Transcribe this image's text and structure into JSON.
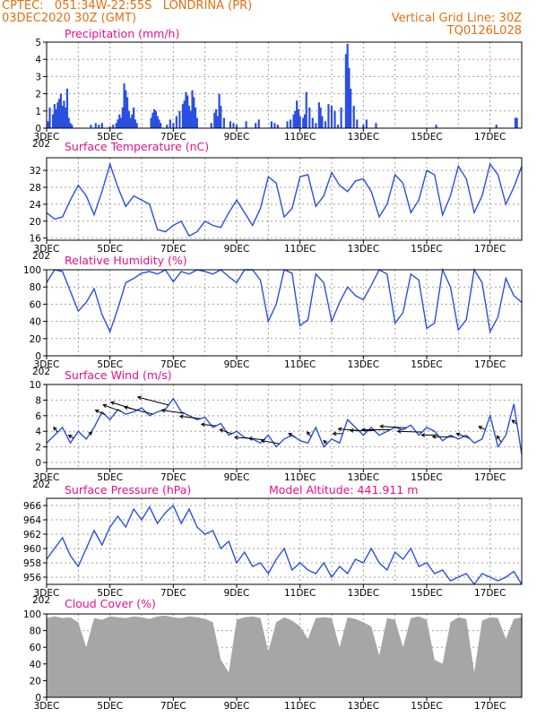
{
  "header": {
    "line1": "CPTEC:   051:34W-22:55S   LONDRINA (PR)",
    "line2": "03DEC2020 30Z (GMT)",
    "grid_note": "Vertical Grid Line: 30Z",
    "code": "TQ0126L028"
  },
  "colors": {
    "header_text": "#e07010",
    "panel_title": "#e8108a",
    "series": "#2b4fe0",
    "cloud": "#a6a6a6",
    "grid": "#a0a0a0",
    "wind_arrow": "#000000"
  },
  "x_axis": {
    "range_days": [
      3.0,
      18.0
    ],
    "tick_labels": [
      "3DEC",
      "5DEC",
      "7DEC",
      "9DEC",
      "11DEC",
      "13DEC",
      "15DEC",
      "17DEC"
    ],
    "tick_days": [
      3,
      5,
      7,
      9,
      11,
      13,
      15,
      17
    ],
    "grid_days": [
      4,
      5,
      6,
      7,
      8,
      9,
      10,
      11,
      12,
      13,
      14,
      15,
      16,
      17
    ],
    "stub_label": "202"
  },
  "chart_data": [
    {
      "type": "bar",
      "title": "Precipitation (mm/h)",
      "ylim": [
        0,
        5
      ],
      "yticks": [
        "0",
        "1",
        "2",
        "3",
        "4",
        "5"
      ],
      "x_day": [
        3.05,
        3.1,
        3.2,
        3.25,
        3.3,
        3.35,
        3.4,
        3.45,
        3.5,
        3.55,
        3.6,
        3.65,
        3.7,
        3.75,
        3.8,
        4.4,
        4.55,
        4.65,
        4.75,
        5.0,
        5.1,
        5.2,
        5.25,
        5.3,
        5.35,
        5.4,
        5.45,
        5.5,
        5.55,
        5.6,
        5.65,
        5.7,
        5.75,
        5.8,
        5.85,
        6.3,
        6.35,
        6.4,
        6.45,
        6.5,
        6.55,
        6.6,
        6.8,
        6.9,
        7.0,
        7.1,
        7.2,
        7.3,
        7.35,
        7.4,
        7.45,
        7.5,
        7.55,
        7.6,
        7.65,
        7.7,
        7.75,
        8.2,
        8.3,
        8.35,
        8.4,
        8.45,
        8.5,
        8.6,
        8.8,
        8.9,
        9.0,
        9.3,
        9.6,
        9.7,
        10.1,
        10.2,
        10.3,
        10.6,
        10.7,
        10.8,
        10.85,
        10.9,
        10.95,
        11.0,
        11.1,
        11.15,
        11.2,
        11.3,
        11.4,
        11.5,
        11.6,
        11.65,
        11.7,
        11.8,
        11.9,
        12.0,
        12.1,
        12.2,
        12.3,
        12.45,
        12.5,
        12.55,
        12.6,
        12.7,
        12.8,
        13.0,
        13.1,
        13.4,
        15.3,
        17.2,
        17.8,
        17.85
      ],
      "values": [
        0.4,
        1.2,
        0.8,
        1.4,
        1.1,
        1.5,
        1.7,
        2.0,
        1.3,
        1.6,
        1.2,
        2.3,
        0.6,
        0.3,
        0.2,
        0.2,
        0.3,
        0.2,
        0.3,
        0.1,
        0.2,
        0.3,
        0.5,
        0.8,
        0.6,
        1.2,
        2.6,
        2.2,
        1.8,
        1.0,
        0.6,
        0.8,
        1.2,
        0.5,
        0.3,
        0.6,
        0.9,
        1.1,
        1.0,
        0.7,
        0.5,
        0.3,
        0.2,
        0.5,
        0.3,
        0.7,
        1.0,
        1.4,
        1.6,
        2.1,
        1.9,
        1.3,
        1.0,
        2.2,
        1.8,
        1.2,
        0.6,
        0.3,
        0.9,
        1.1,
        0.7,
        2.0,
        1.3,
        0.6,
        0.4,
        0.3,
        0.2,
        0.4,
        0.3,
        0.5,
        0.4,
        0.3,
        0.2,
        0.4,
        0.5,
        0.8,
        1.0,
        1.6,
        1.1,
        0.7,
        0.6,
        0.8,
        2.1,
        1.2,
        0.6,
        0.3,
        1.5,
        1.2,
        0.7,
        0.4,
        1.4,
        1.3,
        1.0,
        0.2,
        1.2,
        4.3,
        4.9,
        3.5,
        2.3,
        1.3,
        0.5,
        0.2,
        0.5,
        0.3,
        0.2,
        0.2,
        0.6,
        0.6
      ]
    },
    {
      "type": "line",
      "title": "Surface Temperature (nC)",
      "ylim": [
        15.5,
        35
      ],
      "yticks": [
        "16",
        "20",
        "24",
        "28",
        "32"
      ],
      "ytick_values": [
        16,
        20,
        24,
        28,
        32
      ],
      "x_day": [
        3.0,
        3.25,
        3.5,
        3.75,
        4.0,
        4.25,
        4.5,
        4.75,
        5.0,
        5.25,
        5.5,
        5.75,
        6.0,
        6.25,
        6.5,
        6.75,
        7.0,
        7.25,
        7.5,
        7.75,
        8.0,
        8.25,
        8.5,
        8.75,
        9.0,
        9.25,
        9.5,
        9.75,
        10.0,
        10.25,
        10.5,
        10.75,
        11.0,
        11.25,
        11.5,
        11.75,
        12.0,
        12.25,
        12.5,
        12.75,
        13.0,
        13.25,
        13.5,
        13.75,
        14.0,
        14.25,
        14.5,
        14.75,
        15.0,
        15.25,
        15.5,
        15.75,
        16.0,
        16.25,
        16.5,
        16.75,
        17.0,
        17.25,
        17.5,
        17.75,
        18.0
      ],
      "values": [
        22,
        20.5,
        21,
        25,
        28.5,
        26,
        21.5,
        27,
        33.5,
        28,
        23.5,
        26,
        25,
        24,
        18,
        17.5,
        19,
        20,
        16.5,
        17.5,
        20,
        19,
        18.5,
        22,
        25,
        22,
        19,
        23,
        30.5,
        29,
        21,
        23,
        30.5,
        31,
        23.5,
        26,
        31.5,
        28.5,
        27,
        29.5,
        30,
        27,
        21,
        24,
        31,
        29,
        22,
        25,
        32,
        31,
        21.5,
        26,
        33,
        30,
        22,
        26,
        33.5,
        31,
        24,
        28,
        33
      ]
    },
    {
      "type": "line",
      "title": "Relative Humidity (%)",
      "ylim": [
        0,
        100
      ],
      "yticks": [
        "0",
        "20",
        "40",
        "60",
        "80",
        "100"
      ],
      "ytick_values": [
        0,
        20,
        40,
        60,
        80,
        100
      ],
      "x_day": [
        3.0,
        3.25,
        3.5,
        3.75,
        4.0,
        4.25,
        4.5,
        4.75,
        5.0,
        5.25,
        5.5,
        5.75,
        6.0,
        6.25,
        6.5,
        6.75,
        7.0,
        7.25,
        7.5,
        7.75,
        8.0,
        8.25,
        8.5,
        8.75,
        9.0,
        9.25,
        9.5,
        9.75,
        10.0,
        10.25,
        10.5,
        10.75,
        11.0,
        11.25,
        11.5,
        11.75,
        12.0,
        12.25,
        12.5,
        12.75,
        13.0,
        13.25,
        13.5,
        13.75,
        14.0,
        14.25,
        14.5,
        14.75,
        15.0,
        15.25,
        15.5,
        15.75,
        16.0,
        16.25,
        16.5,
        16.75,
        17.0,
        17.25,
        17.5,
        17.75,
        18.0
      ],
      "values": [
        85,
        100,
        98,
        75,
        52,
        62,
        78,
        48,
        28,
        55,
        85,
        90,
        96,
        98,
        95,
        100,
        86,
        98,
        95,
        100,
        98,
        95,
        100,
        92,
        85,
        100,
        100,
        88,
        40,
        60,
        100,
        96,
        35,
        42,
        95,
        85,
        40,
        62,
        80,
        70,
        65,
        82,
        100,
        95,
        38,
        50,
        95,
        88,
        32,
        38,
        100,
        80,
        30,
        42,
        100,
        85,
        28,
        45,
        90,
        70,
        62
      ]
    },
    {
      "type": "line",
      "title": "Surface Wind (m/s)",
      "ylim": [
        -0.8,
        10
      ],
      "yticks": [
        "0",
        "2",
        "4",
        "6",
        "8",
        "10"
      ],
      "ytick_values": [
        0,
        2,
        4,
        6,
        8,
        10
      ],
      "x_day": [
        3.0,
        3.25,
        3.5,
        3.75,
        4.0,
        4.25,
        4.5,
        4.75,
        5.0,
        5.25,
        5.5,
        5.75,
        6.0,
        6.25,
        6.5,
        6.75,
        7.0,
        7.25,
        7.5,
        7.75,
        8.0,
        8.25,
        8.5,
        8.75,
        9.0,
        9.25,
        9.5,
        9.75,
        10.0,
        10.25,
        10.5,
        10.75,
        11.0,
        11.25,
        11.5,
        11.75,
        12.0,
        12.25,
        12.5,
        12.75,
        13.0,
        13.25,
        13.5,
        13.75,
        14.0,
        14.25,
        14.5,
        14.75,
        15.0,
        15.25,
        15.5,
        15.75,
        16.0,
        16.25,
        16.5,
        16.75,
        17.0,
        17.25,
        17.5,
        17.75,
        18.0
      ],
      "values": [
        2.5,
        3.5,
        4.5,
        2.5,
        4.0,
        3.0,
        4.5,
        6.5,
        5.5,
        6.8,
        6.2,
        6.5,
        7.0,
        6.0,
        6.5,
        6.8,
        8.2,
        6.5,
        6.0,
        5.5,
        5.8,
        4.5,
        5.0,
        3.5,
        4.0,
        3.2,
        3.0,
        2.5,
        3.5,
        2.0,
        3.0,
        3.5,
        2.8,
        2.5,
        4.5,
        2.0,
        3.0,
        2.5,
        5.5,
        4.5,
        3.5,
        4.5,
        3.5,
        4.0,
        4.5,
        4.2,
        4.8,
        3.5,
        4.5,
        4.0,
        2.8,
        3.5,
        3.0,
        3.5,
        2.5,
        3.0,
        6.0,
        2.0,
        3.5,
        7.5,
        1.0
      ]
    },
    {
      "type": "line",
      "title": "Surface Pressure (hPa)",
      "annotation": "Model Altitude: 441.911  m",
      "ylim": [
        955,
        967
      ],
      "yticks": [
        "956",
        "958",
        "960",
        "962",
        "964",
        "966"
      ],
      "ytick_values": [
        956,
        958,
        960,
        962,
        964,
        966
      ],
      "x_day": [
        3.0,
        3.25,
        3.5,
        3.75,
        4.0,
        4.25,
        4.5,
        4.75,
        5.0,
        5.25,
        5.5,
        5.75,
        6.0,
        6.25,
        6.5,
        6.75,
        7.0,
        7.25,
        7.5,
        7.75,
        8.0,
        8.25,
        8.5,
        8.75,
        9.0,
        9.25,
        9.5,
        9.75,
        10.0,
        10.25,
        10.5,
        10.75,
        11.0,
        11.25,
        11.5,
        11.75,
        12.0,
        12.25,
        12.5,
        12.75,
        13.0,
        13.25,
        13.5,
        13.75,
        14.0,
        14.25,
        14.5,
        14.75,
        15.0,
        15.25,
        15.5,
        15.75,
        16.0,
        16.25,
        16.5,
        16.75,
        17.0,
        17.25,
        17.5,
        17.75,
        18.0
      ],
      "values": [
        958.5,
        960,
        961.5,
        959,
        957.5,
        960,
        962.5,
        960.5,
        963,
        964.5,
        963,
        965.5,
        964,
        965.8,
        963.5,
        965,
        966,
        963.5,
        965.5,
        963,
        962,
        962.5,
        960,
        961,
        958,
        959.5,
        957.5,
        958,
        956.5,
        958.5,
        960,
        957,
        958,
        957,
        956.5,
        958,
        956,
        957.5,
        956.5,
        958.5,
        958,
        960,
        958,
        957,
        959.5,
        958.5,
        960,
        957.5,
        958,
        956.5,
        957,
        955.5,
        956,
        956.5,
        955,
        956.5,
        956,
        955.5,
        956,
        956.8,
        955
      ]
    },
    {
      "type": "area",
      "title": "Cloud Cover (%)",
      "ylim": [
        0,
        100
      ],
      "yticks": [
        "0",
        "20",
        "40",
        "60",
        "80",
        "100"
      ],
      "ytick_values": [
        0,
        20,
        40,
        60,
        80,
        100
      ],
      "x_day": [
        3.0,
        3.25,
        3.5,
        3.75,
        4.0,
        4.25,
        4.5,
        4.75,
        5.0,
        5.25,
        5.5,
        5.75,
        6.0,
        6.25,
        6.5,
        6.75,
        7.0,
        7.25,
        7.5,
        7.75,
        8.0,
        8.25,
        8.5,
        8.75,
        9.0,
        9.25,
        9.5,
        9.75,
        10.0,
        10.25,
        10.5,
        10.75,
        11.0,
        11.25,
        11.5,
        11.75,
        12.0,
        12.25,
        12.5,
        12.75,
        13.0,
        13.25,
        13.5,
        13.75,
        14.0,
        14.25,
        14.5,
        14.75,
        15.0,
        15.25,
        15.5,
        15.75,
        16.0,
        16.25,
        16.5,
        16.75,
        17.0,
        17.25,
        17.5,
        17.75,
        18.0
      ],
      "values": [
        95,
        97,
        95,
        96,
        90,
        60,
        95,
        93,
        97,
        96,
        95,
        97,
        96,
        94,
        97,
        98,
        96,
        95,
        97,
        96,
        94,
        90,
        45,
        30,
        93,
        96,
        97,
        95,
        55,
        90,
        96,
        92,
        85,
        70,
        95,
        96,
        95,
        60,
        96,
        94,
        90,
        85,
        50,
        95,
        93,
        60,
        95,
        97,
        93,
        45,
        40,
        90,
        96,
        94,
        30,
        92,
        96,
        95,
        70,
        94,
        96
      ]
    },
    {
      "type": "quiver",
      "title": "Surface wind direction arrows",
      "x_day": [
        3.35,
        3.85,
        4.35,
        4.85,
        5.35,
        5.85,
        6.35,
        6.85,
        7.35,
        7.85,
        8.35,
        8.85,
        9.35,
        9.85,
        10.35,
        10.85,
        11.35,
        11.85,
        12.35,
        12.85,
        13.35,
        13.85,
        14.35,
        14.85,
        15.35,
        15.85,
        16.35,
        16.85,
        17.35,
        17.85
      ],
      "u": [
        -0.5,
        -0.6,
        0.3,
        -1.2,
        -2.2,
        -3.2,
        -3.5,
        -3.8,
        -2.8,
        -2.5,
        -1.8,
        -1.5,
        -1.6,
        -1.8,
        -2.2,
        -0.8,
        -0.5,
        -0.4,
        -1.2,
        -2.5,
        -3.0,
        -3.5,
        -3.2,
        -3.0,
        -2.0,
        -2.6,
        -1.6,
        -0.8,
        -0.5,
        -0.6
      ],
      "v": [
        0.6,
        0.4,
        0.3,
        0.6,
        0.8,
        1.0,
        0.9,
        1.0,
        0.4,
        0.3,
        0.2,
        0.5,
        0.1,
        0.2,
        0.4,
        0.5,
        0.6,
        0.4,
        0.0,
        0.2,
        0.0,
        0.0,
        0.2,
        0.1,
        0.0,
        0.0,
        0.6,
        0.4,
        0.8,
        0.5
      ]
    }
  ]
}
